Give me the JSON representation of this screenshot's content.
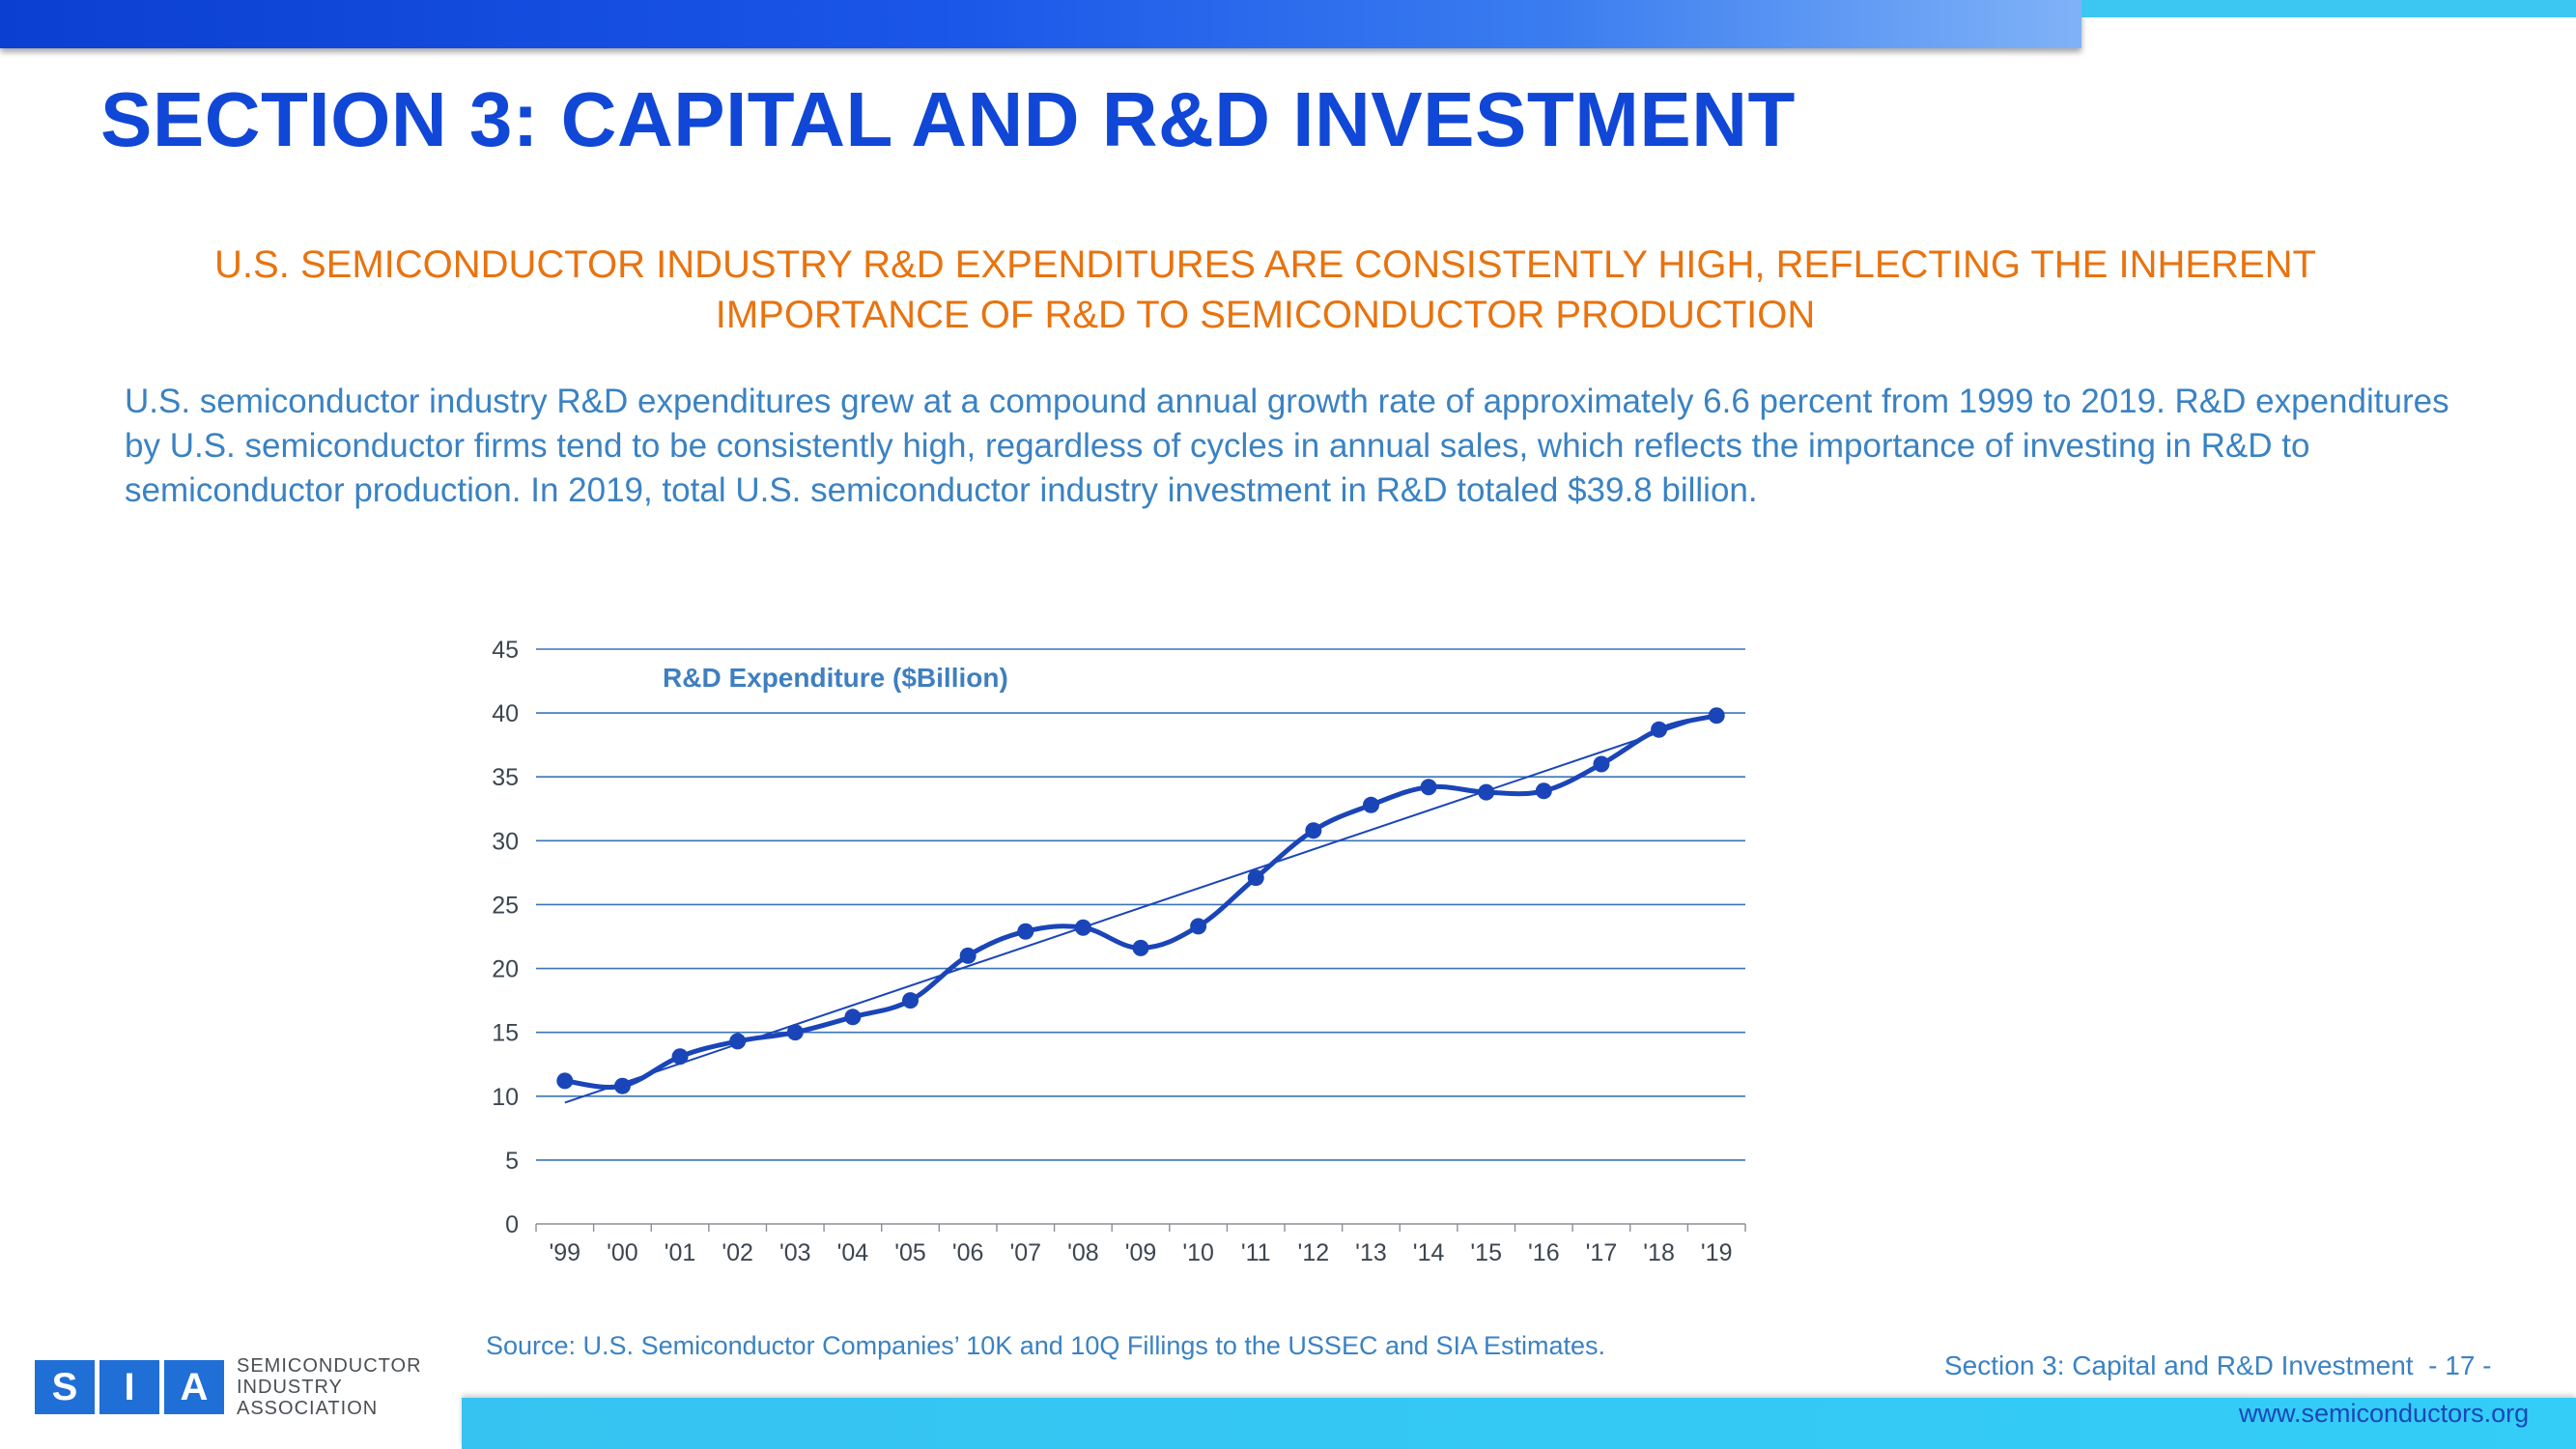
{
  "header": {
    "title": "SECTION 3: CAPITAL AND R&D INVESTMENT"
  },
  "subtitle": "U.S. SEMICONDUCTOR INDUSTRY R&D EXPENDITURES ARE CONSISTENTLY HIGH, REFLECTING THE INHERENT IMPORTANCE OF R&D TO SEMICONDUCTOR PRODUCTION",
  "body_text": "U.S. semiconductor industry R&D expenditures grew at a compound annual growth rate of approximately 6.6 percent from 1999 to 2019. R&D expenditures by U.S. semiconductor firms tend to be consistently high, regardless of cycles in annual sales, which reflects the importance of investing in R&D to semiconductor production. In 2019, total U.S. semiconductor industry investment in R&D totaled $39.8 billion.",
  "source": "Source: U.S. Semiconductor Companies’ 10K and 10Q Fillings to the USSEC and SIA Estimates.",
  "footer": {
    "section_label": "Section 3: Capital and R&D Investment  - 17 -",
    "url": "www.semiconductors.org"
  },
  "logo": {
    "letters": [
      "S",
      "I",
      "A"
    ],
    "lines": [
      "SEMICONDUCTOR",
      "INDUSTRY",
      "ASSOCIATION"
    ]
  },
  "colors": {
    "title": "#1047d6",
    "subtitle": "#e8730f",
    "body": "#3a82c3",
    "series": "#1a45b8",
    "gridline": "#3a74b8",
    "accent_cyan": "#3cc7f3"
  },
  "chart_data": {
    "type": "line",
    "title": "R&D Expenditure ($Billion)",
    "categories": [
      "'99",
      "'00",
      "'01",
      "'02",
      "'03",
      "'04",
      "'05",
      "'06",
      "'07",
      "'08",
      "'09",
      "'10",
      "'11",
      "'12",
      "'13",
      "'14",
      "'15",
      "'16",
      "'17",
      "'18",
      "'19"
    ],
    "series": [
      {
        "values": [
          11.2,
          10.8,
          13.1,
          14.3,
          15.0,
          16.2,
          17.5,
          21.0,
          22.9,
          23.2,
          21.6,
          23.3,
          27.1,
          30.8,
          32.8,
          34.2,
          33.8,
          33.9,
          36.0,
          38.7,
          39.8
        ]
      }
    ],
    "trendline": {
      "type": "linear",
      "start": 9.5,
      "end": 40.0
    },
    "yticks": [
      0,
      5,
      10,
      15,
      20,
      25,
      30,
      35,
      40,
      45
    ],
    "ylim": [
      0,
      45
    ],
    "grid": true,
    "legend": "none"
  }
}
